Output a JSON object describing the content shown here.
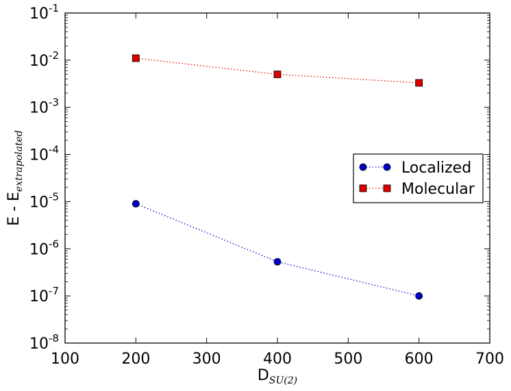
{
  "chart_data": {
    "type": "line",
    "xlabel": "D",
    "xlabel_sub": "SU(2)",
    "ylabel": "E - E",
    "ylabel_sub": "extrapolated",
    "xlim": [
      100,
      700
    ],
    "ylim": [
      1e-08,
      0.1
    ],
    "yscale": "log",
    "grid": false,
    "legend_position": "center-right",
    "x_ticks": [
      "100",
      "200",
      "300",
      "400",
      "500",
      "600",
      "700"
    ],
    "y_ticks": [
      {
        "base": "10",
        "exp": "-8"
      },
      {
        "base": "10",
        "exp": "-7"
      },
      {
        "base": "10",
        "exp": "-6"
      },
      {
        "base": "10",
        "exp": "-5"
      },
      {
        "base": "10",
        "exp": "-4"
      },
      {
        "base": "10",
        "exp": "-3"
      },
      {
        "base": "10",
        "exp": "-2"
      },
      {
        "base": "10",
        "exp": "-1"
      }
    ],
    "series": [
      {
        "name": "Localized",
        "color": "#0000cc",
        "marker": "circle",
        "linestyle": "dotted",
        "x": [
          200,
          400,
          600
        ],
        "y": [
          9e-06,
          5.3e-07,
          1e-07
        ]
      },
      {
        "name": "Molecular",
        "color": "#dd0000",
        "marker": "square",
        "linestyle": "dotted",
        "x": [
          200,
          400,
          600
        ],
        "y": [
          0.011,
          0.005,
          0.0033
        ]
      }
    ]
  }
}
